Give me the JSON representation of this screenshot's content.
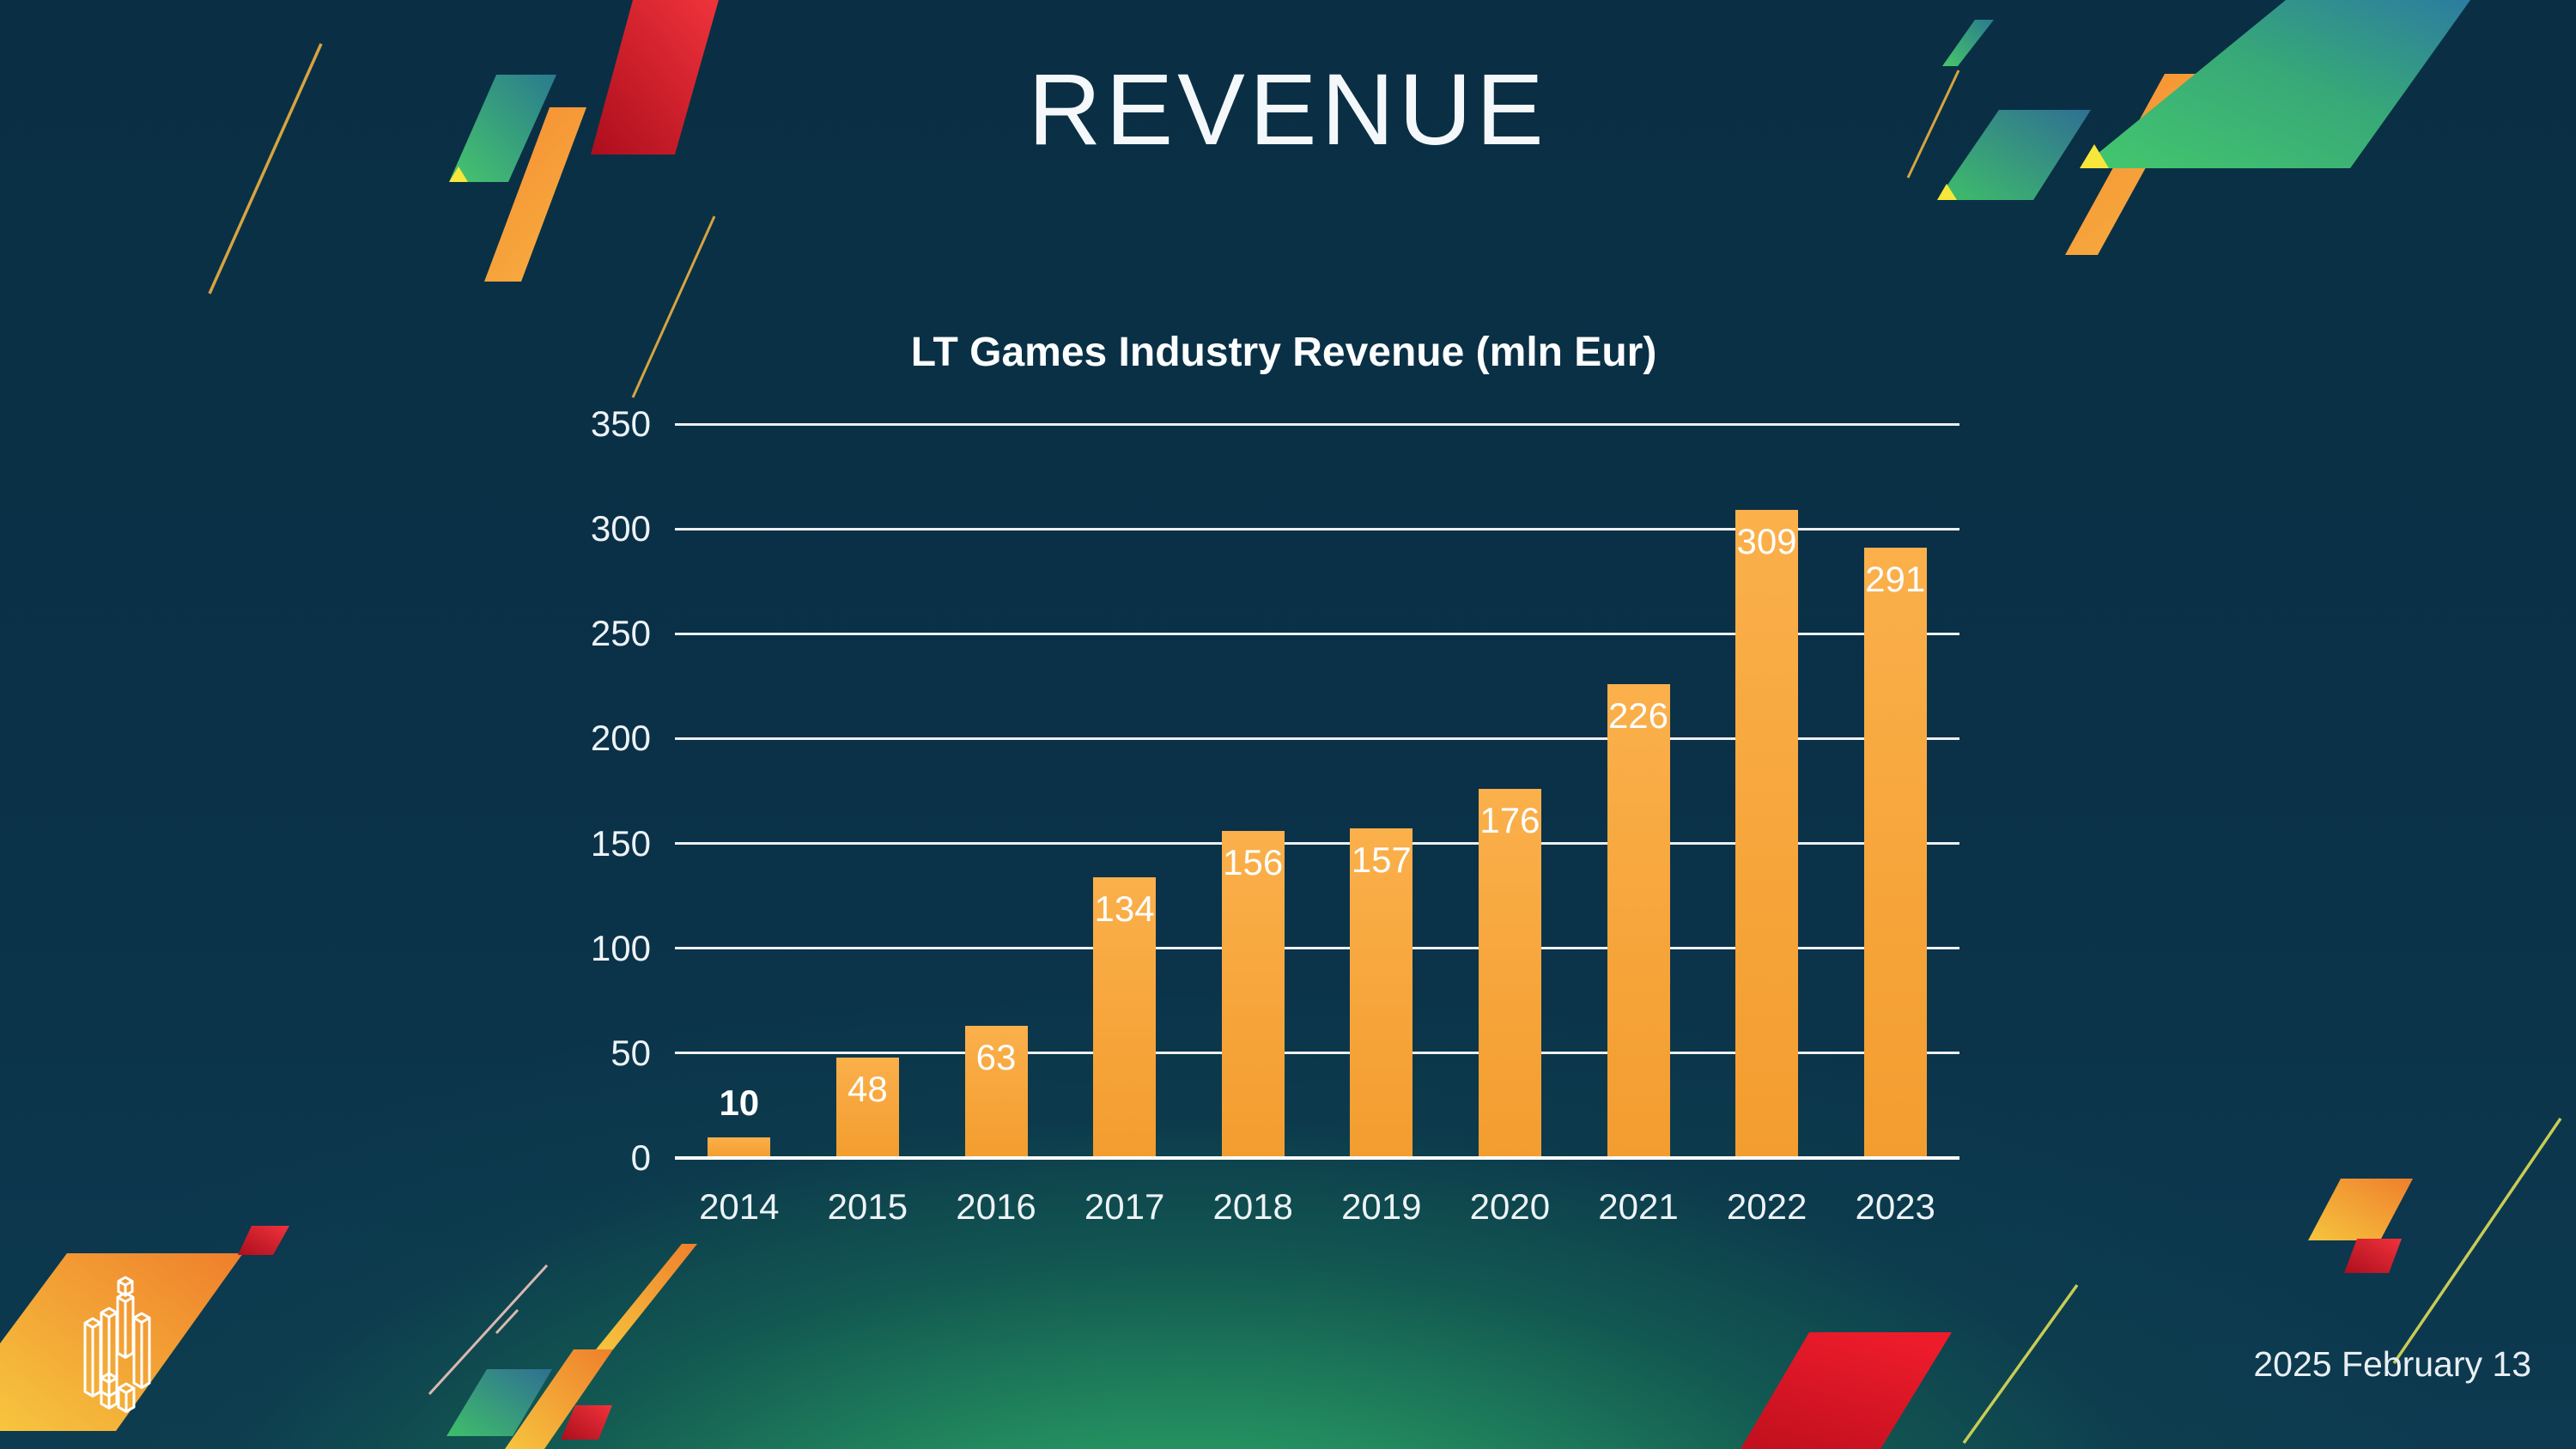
{
  "slide": {
    "title": "REVENUE",
    "date": "2025 February 13"
  },
  "chart_data": {
    "type": "bar",
    "title": "LT Games Industry Revenue (mln Eur)",
    "categories": [
      "2014",
      "2015",
      "2016",
      "2017",
      "2018",
      "2019",
      "2020",
      "2021",
      "2022",
      "2023"
    ],
    "values": [
      10,
      48,
      63,
      134,
      156,
      157,
      176,
      226,
      309,
      291
    ],
    "xlabel": "",
    "ylabel": "",
    "ylim": [
      0,
      350
    ],
    "yticks": [
      0,
      50,
      100,
      150,
      200,
      250,
      300,
      350
    ],
    "grid": true,
    "legend": false,
    "bar_color": "#F8A73C",
    "value_label_color": "#FFFFFF",
    "outside_label_values": [
      10
    ]
  },
  "colors": {
    "background": "#0A3148",
    "glow_green": "#2EA96C",
    "accent_orange": "#F8A73C",
    "accent_red": "#E01F2E",
    "accent_green": "#3FC06B",
    "accent_teal_blue": "#2F6F93",
    "accent_gold_line": "#D7A43F",
    "text": "#F2F6F8"
  }
}
